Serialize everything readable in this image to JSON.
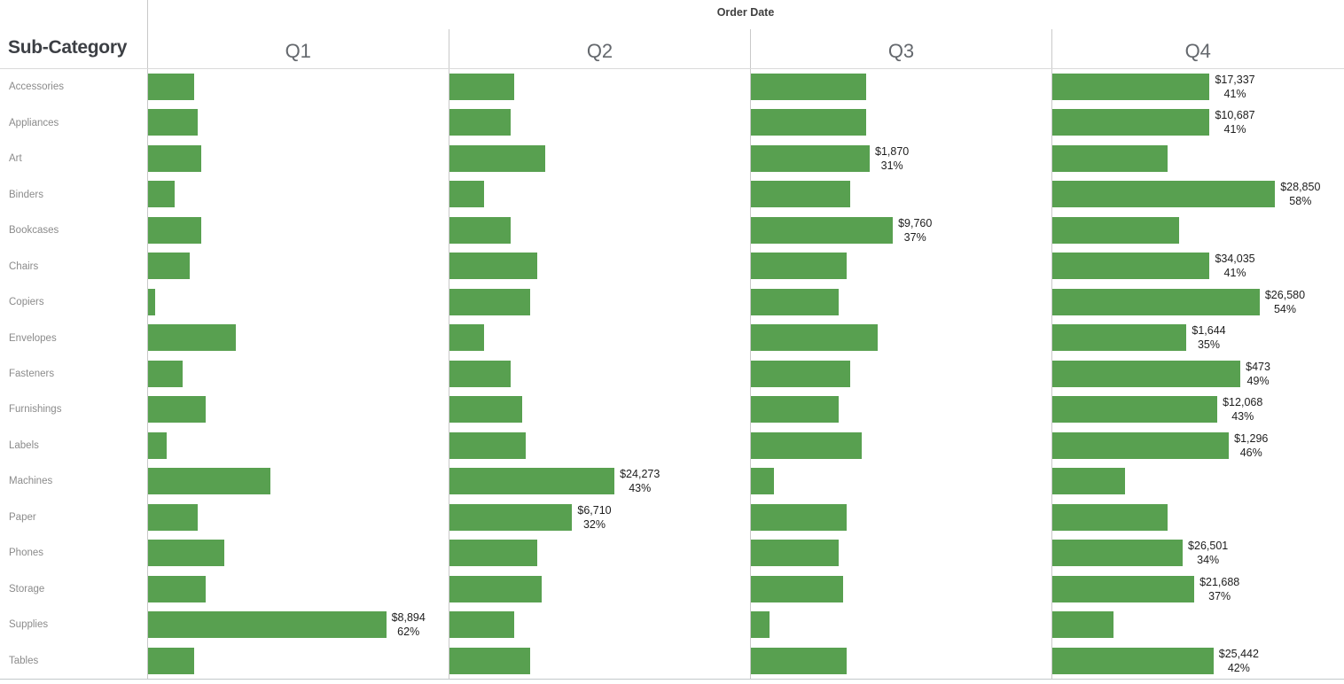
{
  "title": {
    "order_date": "Order Date",
    "row_dimension": "Sub-Category"
  },
  "chart_data": {
    "type": "bar",
    "orientation": "horizontal",
    "title": "Order Date",
    "row_header": "Sub-Category",
    "panel_columns": [
      "Q1",
      "Q2",
      "Q3",
      "Q4"
    ],
    "x_axis": {
      "label": "",
      "unit": "percent of row total sales",
      "range": [
        0,
        78
      ],
      "gridlines": false,
      "axis_hidden": true
    },
    "bar_color": "#58a050",
    "annotation_note": "each row labels its maximum quarter with sales $ and % of row total",
    "rows": [
      {
        "label": "Accessories",
        "percents": [
          12,
          17,
          30,
          41
        ],
        "annotation": {
          "quarter": "Q4",
          "q_index": 3,
          "value": "$17,337",
          "percent": "41%"
        }
      },
      {
        "label": "Appliances",
        "percents": [
          13,
          16,
          30,
          41
        ],
        "annotation": {
          "quarter": "Q4",
          "q_index": 3,
          "value": "$10,687",
          "percent": "41%"
        }
      },
      {
        "label": "Art",
        "percents": [
          14,
          25,
          31,
          30
        ],
        "annotation": {
          "quarter": "Q3",
          "q_index": 2,
          "value": "$1,870",
          "percent": "31%"
        }
      },
      {
        "label": "Binders",
        "percents": [
          7,
          9,
          26,
          58
        ],
        "annotation": {
          "quarter": "Q4",
          "q_index": 3,
          "value": "$28,850",
          "percent": "58%"
        }
      },
      {
        "label": "Bookcases",
        "percents": [
          14,
          16,
          37,
          33
        ],
        "annotation": {
          "quarter": "Q3",
          "q_index": 2,
          "value": "$9,760",
          "percent": "37%"
        }
      },
      {
        "label": "Chairs",
        "percents": [
          11,
          23,
          25,
          41
        ],
        "annotation": {
          "quarter": "Q4",
          "q_index": 3,
          "value": "$34,035",
          "percent": "41%"
        }
      },
      {
        "label": "Copiers",
        "percents": [
          2,
          21,
          23,
          54
        ],
        "annotation": {
          "quarter": "Q4",
          "q_index": 3,
          "value": "$26,580",
          "percent": "54%"
        }
      },
      {
        "label": "Envelopes",
        "percents": [
          23,
          9,
          33,
          35
        ],
        "annotation": {
          "quarter": "Q4",
          "q_index": 3,
          "value": "$1,644",
          "percent": "35%"
        }
      },
      {
        "label": "Fasteners",
        "percents": [
          9,
          16,
          26,
          49
        ],
        "annotation": {
          "quarter": "Q4",
          "q_index": 3,
          "value": "$473",
          "percent": "49%"
        }
      },
      {
        "label": "Furnishings",
        "percents": [
          15,
          19,
          23,
          43
        ],
        "annotation": {
          "quarter": "Q4",
          "q_index": 3,
          "value": "$12,068",
          "percent": "43%"
        }
      },
      {
        "label": "Labels",
        "percents": [
          5,
          20,
          29,
          46
        ],
        "annotation": {
          "quarter": "Q4",
          "q_index": 3,
          "value": "$1,296",
          "percent": "46%"
        }
      },
      {
        "label": "Machines",
        "percents": [
          32,
          43,
          6,
          19
        ],
        "annotation": {
          "quarter": "Q2",
          "q_index": 1,
          "value": "$24,273",
          "percent": "43%"
        }
      },
      {
        "label": "Paper",
        "percents": [
          13,
          32,
          25,
          30
        ],
        "annotation": {
          "quarter": "Q2",
          "q_index": 1,
          "value": "$6,710",
          "percent": "32%"
        }
      },
      {
        "label": "Phones",
        "percents": [
          20,
          23,
          23,
          34
        ],
        "annotation": {
          "quarter": "Q4",
          "q_index": 3,
          "value": "$26,501",
          "percent": "34%"
        }
      },
      {
        "label": "Storage",
        "percents": [
          15,
          24,
          24,
          37
        ],
        "annotation": {
          "quarter": "Q4",
          "q_index": 3,
          "value": "$21,688",
          "percent": "37%"
        }
      },
      {
        "label": "Supplies",
        "percents": [
          62,
          17,
          5,
          16
        ],
        "annotation": {
          "quarter": "Q1",
          "q_index": 0,
          "value": "$8,894",
          "percent": "62%"
        }
      },
      {
        "label": "Tables",
        "percents": [
          12,
          21,
          25,
          42
        ],
        "annotation": {
          "quarter": "Q4",
          "q_index": 3,
          "value": "$25,442",
          "percent": "42%"
        }
      }
    ]
  },
  "colors": {
    "bar": "#58a050",
    "divider_line": "#c9c9c9",
    "bottom_axis_line": "#c2c8cb",
    "row_label_text": "#8b8b8b",
    "column_header_text": "#64686d",
    "corner_header_text": "#3c3f44",
    "annotation_text": "#1d1d1d",
    "background": "#ffffff"
  }
}
